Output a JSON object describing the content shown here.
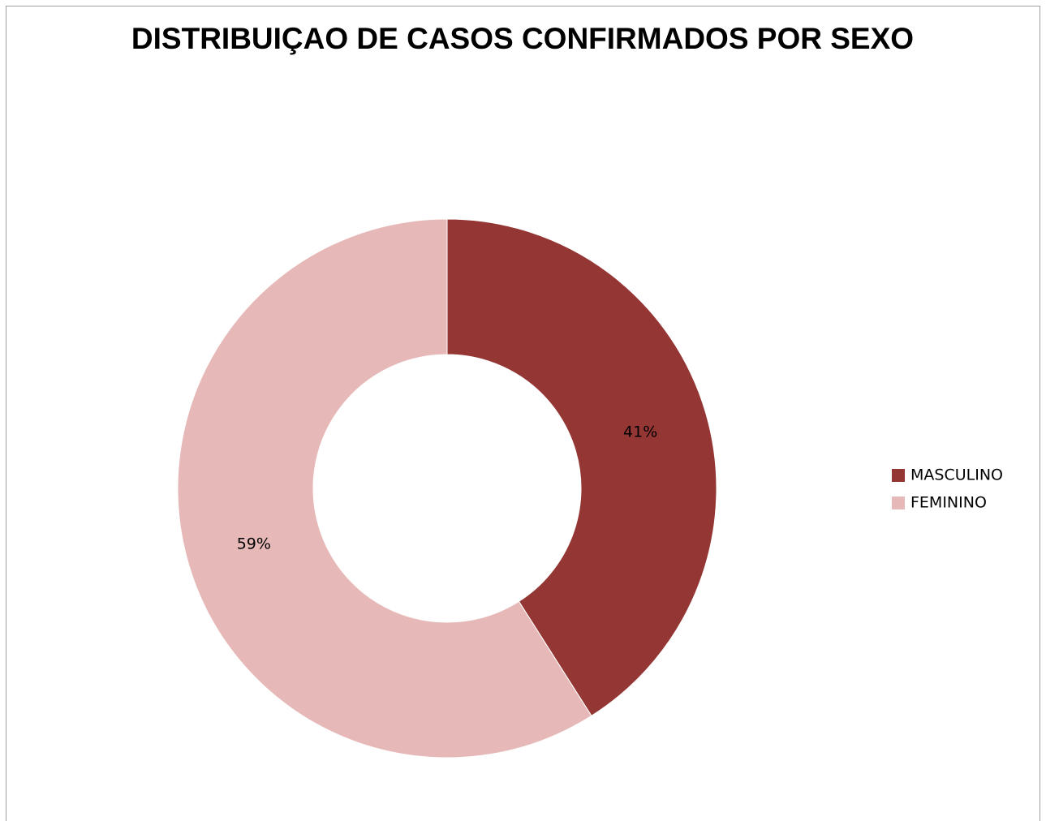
{
  "chart_data": {
    "type": "donut",
    "title": "DISTRIBUIÇAO DE CASOS CONFIRMADOS POR SEXO",
    "categories": [
      "MASCULINO",
      "FEMININO"
    ],
    "values": [
      41,
      59
    ],
    "value_labels": [
      "41%",
      "59%"
    ],
    "colors": [
      "#943634",
      "#e6b9b8"
    ],
    "legend": "right"
  }
}
